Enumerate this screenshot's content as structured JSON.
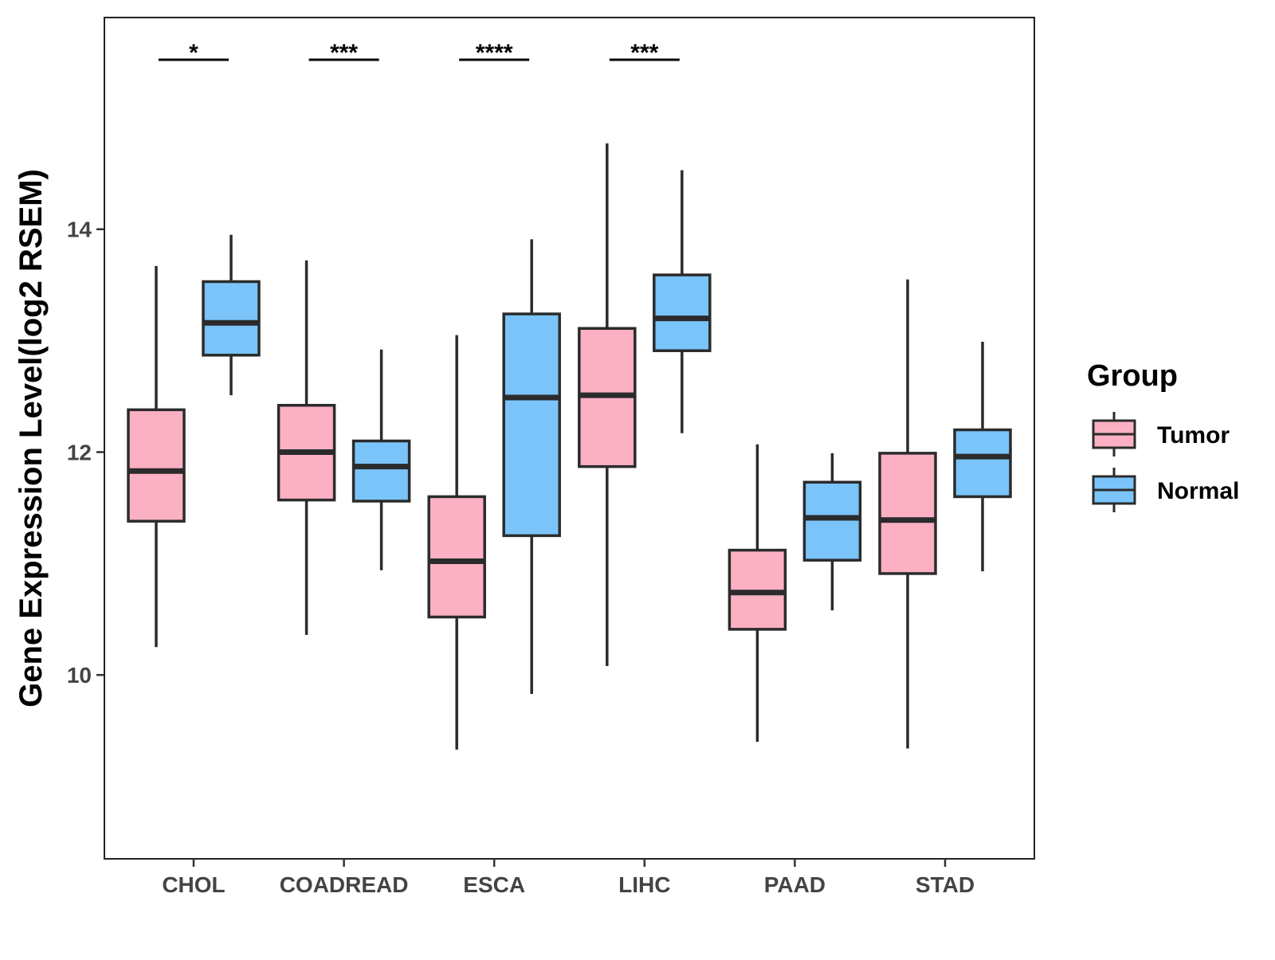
{
  "chart_data": {
    "type": "boxplot",
    "title": "",
    "xlabel": "",
    "ylabel": "Gene Expression Level(log2 RSEM)",
    "ylim": [
      8.35,
      15.9
    ],
    "y_ticks": [
      10,
      12,
      14
    ],
    "y_tick_labels": [
      "10",
      "12",
      "14"
    ],
    "grid": false,
    "categories": [
      "CHOL",
      "COADREAD",
      "ESCA",
      "LIHC",
      "PAAD",
      "STAD"
    ],
    "legend": {
      "title": "Group",
      "position": "right",
      "entries": [
        "Tumor",
        "Normal"
      ]
    },
    "series": [
      {
        "name": "Tumor",
        "color": "#FBB1C3",
        "boxes": [
          {
            "min": 10.25,
            "q1": 11.38,
            "median": 11.83,
            "q3": 12.38,
            "max": 13.67
          },
          {
            "min": 10.36,
            "q1": 11.57,
            "median": 12.0,
            "q3": 12.42,
            "max": 13.72
          },
          {
            "min": 9.33,
            "q1": 10.52,
            "median": 11.02,
            "q3": 11.6,
            "max": 13.05
          },
          {
            "min": 10.08,
            "q1": 11.87,
            "median": 12.51,
            "q3": 13.11,
            "max": 14.77
          },
          {
            "min": 9.4,
            "q1": 10.41,
            "median": 10.74,
            "q3": 11.12,
            "max": 12.07
          },
          {
            "min": 9.34,
            "q1": 10.91,
            "median": 11.39,
            "q3": 11.99,
            "max": 13.55
          }
        ]
      },
      {
        "name": "Normal",
        "color": "#7AC4FA",
        "boxes": [
          {
            "min": 12.51,
            "q1": 12.87,
            "median": 13.16,
            "q3": 13.53,
            "max": 13.95
          },
          {
            "min": 10.94,
            "q1": 11.56,
            "median": 11.87,
            "q3": 12.1,
            "max": 12.92
          },
          {
            "min": 9.83,
            "q1": 11.25,
            "median": 12.49,
            "q3": 13.24,
            "max": 13.91
          },
          {
            "min": 12.17,
            "q1": 12.91,
            "median": 13.2,
            "q3": 13.59,
            "max": 14.53
          },
          {
            "min": 10.58,
            "q1": 11.03,
            "median": 11.41,
            "q3": 11.73,
            "max": 11.99
          },
          {
            "min": 10.93,
            "q1": 11.6,
            "median": 11.96,
            "q3": 12.2,
            "max": 12.99
          }
        ]
      }
    ],
    "annotations": [
      {
        "category": "CHOL",
        "label": "*"
      },
      {
        "category": "COADREAD",
        "label": "***"
      },
      {
        "category": "ESCA",
        "label": "****"
      },
      {
        "category": "LIHC",
        "label": "***"
      }
    ]
  }
}
